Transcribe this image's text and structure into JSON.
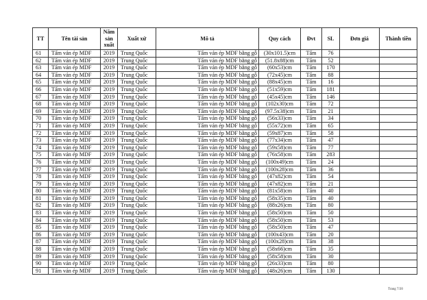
{
  "table": {
    "headers": [
      "TT",
      "Tên tài sản",
      "Năm sản xuất",
      "Xuất xứ",
      "Mô tả",
      "Quy cách",
      "Đvt",
      "SL",
      "Đơn giá",
      "Thành tiền"
    ],
    "rows": [
      [
        "61",
        "Tấm ván ép MDF",
        "2019",
        "Trung Quốc",
        "Tấm ván ép MDF bằng gỗ",
        "(30x101.5)cm",
        "Tấm",
        "76",
        "",
        ""
      ],
      [
        "62",
        "Tấm ván ép MDF",
        "2019",
        "Trung Quốc",
        "Tấm ván ép MDF bằng gỗ",
        "(51.8x88)cm",
        "Tấm",
        "52",
        "",
        ""
      ],
      [
        "63",
        "Tấm ván ép MDF",
        "2019",
        "Trung Quốc",
        "Tấm ván ép MDF bằng gỗ",
        "(60x53)cm",
        "Tấm",
        "170",
        "",
        ""
      ],
      [
        "64",
        "Tấm ván ép MDF",
        "2019",
        "Trung Quốc",
        "Tấm ván ép MDF bằng gỗ",
        "(72x45)cm",
        "Tấm",
        "88",
        "",
        ""
      ],
      [
        "65",
        "Tấm ván ép MDF",
        "2019",
        "Trung Quốc",
        "Tấm ván ép MDF bằng gỗ",
        "(88x45)cm",
        "Tấm",
        "16",
        "",
        ""
      ],
      [
        "66",
        "Tấm ván ép MDF",
        "2019",
        "Trung Quốc",
        "Tấm ván ép MDF bằng gỗ",
        "(51x59)cm",
        "Tấm",
        "181",
        "",
        ""
      ],
      [
        "67",
        "Tấm ván ép MDF",
        "2019",
        "Trung Quốc",
        "Tấm ván ép MDF bằng gỗ",
        "(45x45)cm",
        "Tấm",
        "146",
        "",
        ""
      ],
      [
        "68",
        "Tấm ván ép MDF",
        "2019",
        "Trung Quốc",
        "Tấm ván ép MDF bằng gỗ",
        "(102x30)cm",
        "Tấm",
        "72",
        "",
        ""
      ],
      [
        "69",
        "Tấm ván ép MDF",
        "2019",
        "Trung Quốc",
        "Tấm ván ép MDF bằng gỗ",
        "(97.5x38)cm",
        "Tấm",
        "21",
        "",
        ""
      ],
      [
        "70",
        "Tấm ván ép MDF",
        "2019",
        "Trung Quốc",
        "Tấm ván ép MDF  bằng gỗ",
        "(56x33)cm",
        "Tấm",
        "34",
        "",
        ""
      ],
      [
        "71",
        "Tấm ván ép MDF",
        "2019",
        "Trung Quốc",
        "Tấm ván ép MDF  bằng gỗ",
        "(55x72)cm",
        "Tấm",
        "65",
        "",
        ""
      ],
      [
        "72",
        "Tấm ván ép MDF",
        "2019",
        "Trung Quốc",
        "Tấm ván ép MDF  bằng gỗ",
        "(59x87)cm",
        "Tấm",
        "58",
        "",
        ""
      ],
      [
        "73",
        "Tấm ván ép MDF",
        "2019",
        "Trung Quốc",
        "Tấm ván ép MDF  bằng gỗ",
        "(77x34)cm",
        "Tấm",
        "47",
        "",
        ""
      ],
      [
        "74",
        "Tấm ván ép MDF",
        "2019",
        "Trung Quốc",
        "Tấm ván ép MDF  bằng gỗ",
        "(59x58)cm",
        "Tấm",
        "77",
        "",
        ""
      ],
      [
        "75",
        "Tấm ván ép MDF",
        "2019",
        "Trung Quốc",
        "Tấm ván ép MDF  bằng gỗ",
        "(76x58)cm",
        "Tấm",
        "283",
        "",
        ""
      ],
      [
        "76",
        "Tấm ván ép MDF",
        "2019",
        "Trung Quốc",
        "Tấm ván ép MDF  bằng gỗ",
        "(100x49)cm",
        "Tấm",
        "24",
        "",
        ""
      ],
      [
        "77",
        "Tấm ván ép MDF",
        "2019",
        "Trung Quốc",
        "Tấm ván ép MDF  bằng gỗ",
        "(100x28)cm",
        "Tấm",
        "36",
        "",
        ""
      ],
      [
        "78",
        "Tấm ván ép MDF",
        "2019",
        "Trung Quốc",
        "Tấm ván ép MDF  bằng gỗ",
        "(47x82)cm",
        "Tấm",
        "54",
        "",
        ""
      ],
      [
        "79",
        "Tấm ván ép MDF",
        "2019",
        "Trung Quốc",
        "Tấm ván ép MDF  bằng gỗ",
        "(47x82)cm",
        "Tấm",
        "21",
        "",
        ""
      ],
      [
        "80",
        "Tấm ván ép MDF",
        "2019",
        "Trung Quốc",
        "Tấm ván ép MDF  bằng gỗ",
        "(81x58)cm",
        "Tấm",
        "40",
        "",
        ""
      ],
      [
        "81",
        "Tấm ván ép MDF",
        "2019",
        "Trung Quốc",
        "Tấm ván ép MDF  bằng gỗ",
        "(58x35)cm",
        "Tấm",
        "40",
        "",
        ""
      ],
      [
        "82",
        "Tấm ván ép MDF",
        "2019",
        "Trung Quốc",
        "Tấm ván ép MDF  bằng gỗ",
        "(88x26)cm",
        "Tấm",
        "80",
        "",
        ""
      ],
      [
        "83",
        "Tấm ván ép MDF",
        "2019",
        "Trung Quốc",
        "Tấm ván ép MDF  bằng gỗ",
        "(58x50)cm",
        "Tấm",
        "50",
        "",
        ""
      ],
      [
        "84",
        "Tấm ván ép MDF",
        "2019",
        "Trung Quốc",
        "Tấm ván ép MDF  bằng gỗ",
        "(58x50)cm",
        "Tấm",
        "53",
        "",
        ""
      ],
      [
        "85",
        "Tấm ván ép MDF",
        "2019",
        "Trung Quốc",
        "Tấm ván ép MDF  bằng gỗ",
        "(58x50)cm",
        "Tấm",
        "47",
        "",
        ""
      ],
      [
        "86",
        "Tấm ván ép MDF",
        "2019",
        "Trung Quốc",
        "Tấm ván ép MDF  bằng gỗ",
        "(100x43)cm",
        "Tấm",
        "20",
        "",
        ""
      ],
      [
        "87",
        "Tấm ván ép MDF",
        "2019",
        "Trung Quốc",
        "Tấm ván ép MDF  bằng gỗ",
        "(100x28)cm",
        "Tấm",
        "38",
        "",
        ""
      ],
      [
        "88",
        "Tấm ván ép MDF",
        "2019",
        "Trung Quốc",
        "Tấm ván ép MDF  bằng gỗ",
        "(58x66)cm",
        "Tấm",
        "35",
        "",
        ""
      ],
      [
        "89",
        "Tấm ván ép MDF",
        "2019",
        "Trung Quốc",
        "Tấm ván ép MDF  bằng gỗ",
        "(58x58)cm",
        "Tấm",
        "30",
        "",
        ""
      ],
      [
        "90",
        "Tấm ván ép MDF",
        "2019",
        "Trung Quốc",
        "Tấm ván ép MDF  bằng gỗ",
        "(26x33)cm",
        "Tấm",
        "80",
        "",
        ""
      ],
      [
        "91",
        "Tấm ván ép MDF",
        "2019",
        "Trung Quốc",
        "Tấm ván ép MDF  bằng gỗ",
        "(48x26)cm",
        "Tấm",
        "130",
        "",
        ""
      ]
    ]
  },
  "footer": {
    "page": "Trang 7/20"
  }
}
